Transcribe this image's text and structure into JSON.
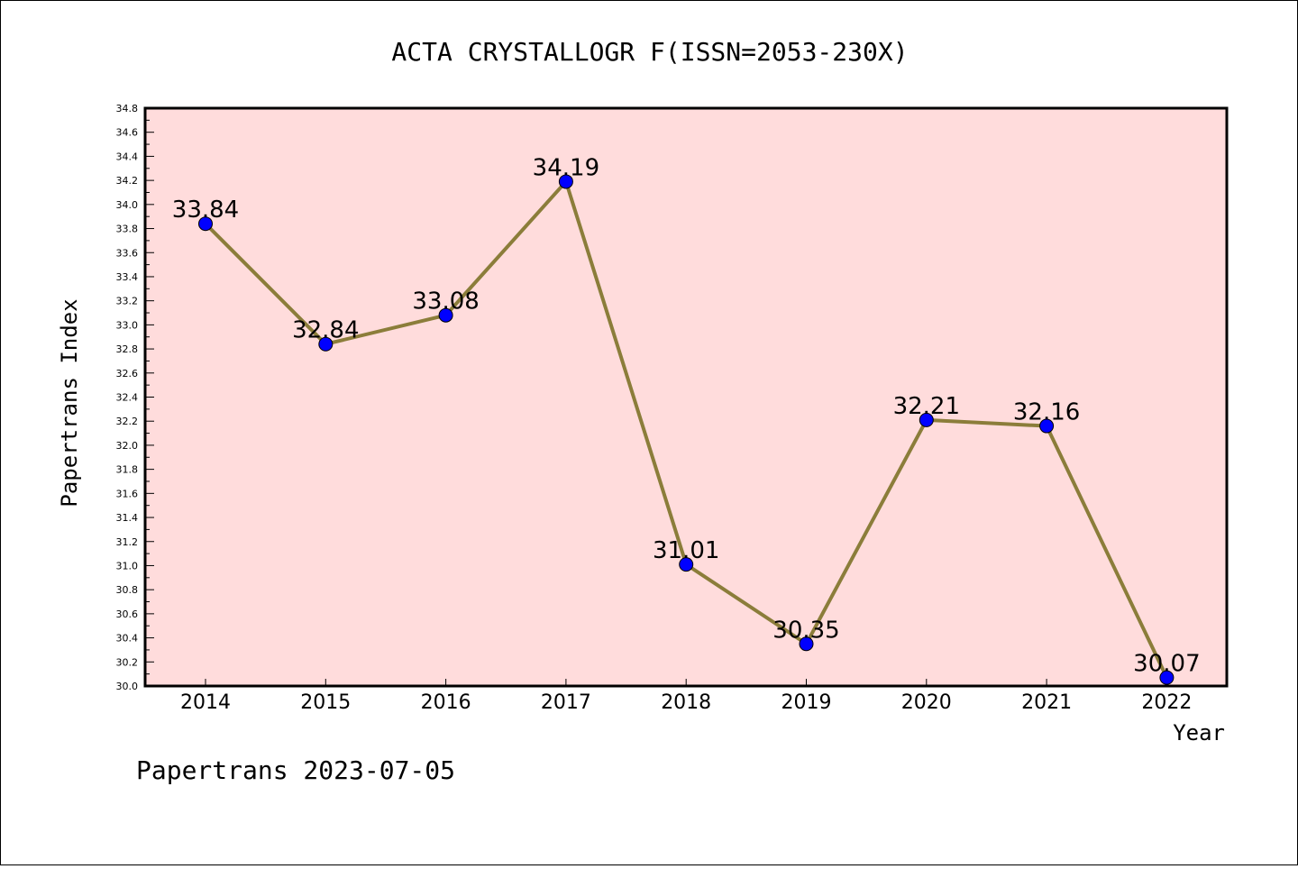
{
  "footer": "Papertrans 2023-07-05",
  "chart_data": {
    "type": "line",
    "title": "ACTA CRYSTALLOGR F(ISSN=2053-230X)",
    "xlabel": "Year",
    "ylabel": "Papertrans Index",
    "categories": [
      "2014",
      "2015",
      "2016",
      "2017",
      "2018",
      "2019",
      "2020",
      "2021",
      "2022"
    ],
    "series": [
      {
        "values": [
          33.84,
          32.84,
          33.08,
          34.19,
          31.01,
          30.35,
          32.21,
          32.16,
          30.07
        ]
      }
    ],
    "data_labels": [
      "33.84",
      "32.84",
      "33.08",
      "34.19",
      "31.01",
      "30.35",
      "32.21",
      "32.16",
      "30.07"
    ],
    "ylim": [
      30.0,
      34.8
    ],
    "yticks": [
      "30.0",
      "30.2",
      "30.4",
      "30.6",
      "30.8",
      "31.0",
      "31.2",
      "31.4",
      "31.6",
      "31.8",
      "32.0",
      "32.2",
      "32.4",
      "32.6",
      "32.8",
      "33.0",
      "33.2",
      "33.4",
      "33.6",
      "33.8",
      "34.0",
      "34.2",
      "34.4",
      "34.6",
      "34.8"
    ],
    "grid": false,
    "colors": {
      "plot_background": "#ffdcdc",
      "line": "#8b7d3a",
      "marker": "#0000ff"
    }
  }
}
